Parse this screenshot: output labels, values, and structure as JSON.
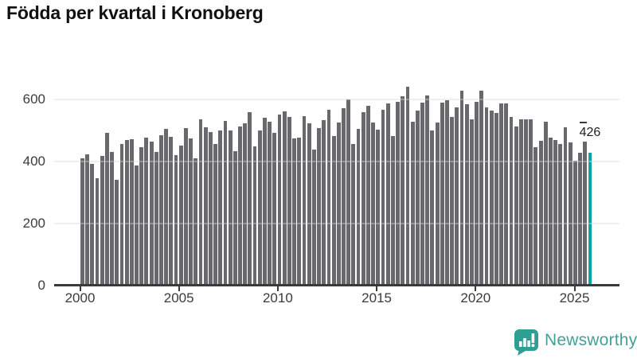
{
  "title": "Födda per kvartal i Kronoberg",
  "branding": {
    "name": "Newsworthy",
    "icon": "newsworthy-speech-bubble-bar-chart-icon",
    "text_color": "#43a096",
    "icon_color": "#2f9f96"
  },
  "colors": {
    "bar": "#68686d",
    "highlight_bar": "#10a49f",
    "axis": "#3a3a3a",
    "gridline": "#e8e8e8",
    "tick_text": "#3b3b3b",
    "title_text": "#111111",
    "background": "#ffffff"
  },
  "chart_data": {
    "type": "bar",
    "title": "Födda per kvartal i Kronoberg",
    "xlabel": "",
    "ylabel": "",
    "x_tick_labels": [
      "2000",
      "2005",
      "2010",
      "2015",
      "2020",
      "2025"
    ],
    "y_ticks": [
      0,
      200,
      400,
      600
    ],
    "ylim": [
      0,
      660
    ],
    "grid": "horizontal",
    "legend": "none",
    "categories": [
      "2000Q1",
      "2000Q2",
      "2000Q3",
      "2000Q4",
      "2001Q1",
      "2001Q2",
      "2001Q3",
      "2001Q4",
      "2002Q1",
      "2002Q2",
      "2002Q3",
      "2002Q4",
      "2003Q1",
      "2003Q2",
      "2003Q3",
      "2003Q4",
      "2004Q1",
      "2004Q2",
      "2004Q3",
      "2004Q4",
      "2005Q1",
      "2005Q2",
      "2005Q3",
      "2005Q4",
      "2006Q1",
      "2006Q2",
      "2006Q3",
      "2006Q4",
      "2007Q1",
      "2007Q2",
      "2007Q3",
      "2007Q4",
      "2008Q1",
      "2008Q2",
      "2008Q3",
      "2008Q4",
      "2009Q1",
      "2009Q2",
      "2009Q3",
      "2009Q4",
      "2010Q1",
      "2010Q2",
      "2010Q3",
      "2010Q4",
      "2011Q1",
      "2011Q2",
      "2011Q3",
      "2011Q4",
      "2012Q1",
      "2012Q2",
      "2012Q3",
      "2012Q4",
      "2013Q1",
      "2013Q2",
      "2013Q3",
      "2013Q4",
      "2014Q1",
      "2014Q2",
      "2014Q3",
      "2014Q4",
      "2015Q1",
      "2015Q2",
      "2015Q3",
      "2015Q4",
      "2016Q1",
      "2016Q2",
      "2016Q3",
      "2016Q4",
      "2017Q1",
      "2017Q2",
      "2017Q3",
      "2017Q4",
      "2018Q1",
      "2018Q2",
      "2018Q3",
      "2018Q4",
      "2019Q1",
      "2019Q2",
      "2019Q3",
      "2019Q4",
      "2020Q1",
      "2020Q2",
      "2020Q3",
      "2020Q4",
      "2021Q1",
      "2021Q2",
      "2021Q3",
      "2021Q4",
      "2022Q1",
      "2022Q2",
      "2022Q3",
      "2022Q4",
      "2023Q1",
      "2023Q2",
      "2023Q3",
      "2023Q4",
      "2024Q1",
      "2024Q2",
      "2024Q3",
      "2024Q4",
      "2025Q1",
      "2025Q2",
      "2025Q3",
      "2025Q4"
    ],
    "values": [
      410,
      423,
      390,
      344,
      416,
      491,
      430,
      339,
      455,
      467,
      470,
      387,
      444,
      476,
      464,
      430,
      483,
      504,
      478,
      419,
      449,
      507,
      473,
      410,
      534,
      510,
      493,
      455,
      498,
      530,
      500,
      433,
      513,
      521,
      558,
      447,
      498,
      540,
      527,
      490,
      551,
      561,
      543,
      473,
      476,
      544,
      521,
      437,
      506,
      532,
      566,
      481,
      524,
      570,
      598,
      455,
      504,
      558,
      578,
      524,
      501,
      566,
      587,
      481,
      592,
      609,
      641,
      528,
      564,
      590,
      611,
      500,
      524,
      590,
      596,
      543,
      574,
      626,
      583,
      534,
      592,
      626,
      574,
      564,
      555,
      585,
      585,
      543,
      513,
      534,
      535,
      534,
      444,
      466,
      526,
      476,
      468,
      455,
      510,
      461,
      402,
      427,
      464,
      426
    ],
    "highlight_index": 103,
    "annotation": {
      "text": "426",
      "value": 426,
      "category": "2025Q4"
    }
  }
}
